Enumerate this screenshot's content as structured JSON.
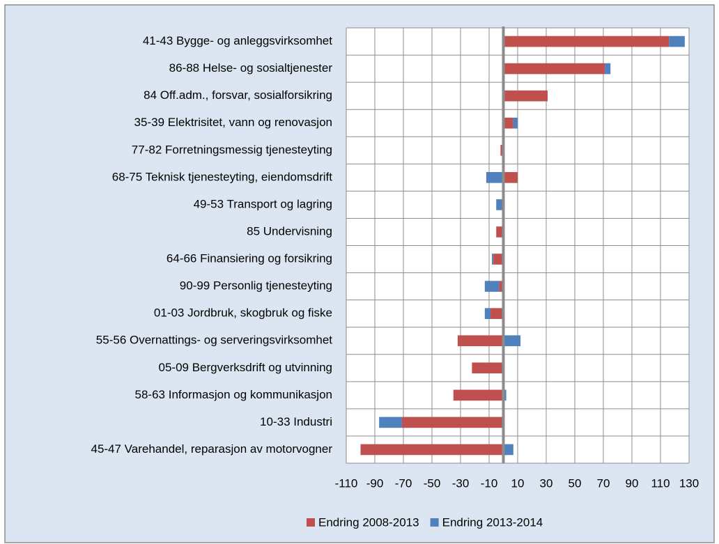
{
  "chart_data": {
    "type": "stacked-barh",
    "categories": [
      "41-43 Bygge- og anleggsvirksomhet",
      "86-88 Helse- og sosialtjenester",
      "84 Off.adm., forsvar, sosialforsikring",
      "35-39 Elektrisitet, vann og renovasjon",
      "77-82 Forretningsmessig tjenesteyting",
      "68-75 Teknisk tjenesteyting, eiendomsdrift",
      "49-53 Transport og lagring",
      "85 Undervisning",
      "64-66 Finansiering og forsikring",
      "90-99 Personlig tjenesteyting",
      "01-03 Jordbruk, skogbruk og fiske",
      "55-56 Overnattings- og serveringsvirksomhet",
      "05-09 Bergverksdrift og utvinning",
      "58-63 Informasjon og kommunikasjon",
      "10-33 Industri",
      "45-47 Varehandel, reparasjon av motorvogner"
    ],
    "series": [
      {
        "name": "Endring 2008-2013",
        "color": "#c0504d",
        "values": [
          116,
          71,
          31,
          7,
          -2,
          10,
          1,
          -5,
          -7,
          -3,
          -9,
          -32,
          -22,
          -35,
          -71,
          -100
        ]
      },
      {
        "name": "Endring 2013-2014",
        "color": "#4f81bd",
        "values": [
          11,
          4,
          0,
          3,
          0,
          -12,
          -5,
          0,
          -1,
          -10,
          -4,
          12,
          0,
          2,
          -16,
          7
        ]
      }
    ],
    "xlim": [
      -110,
      130
    ],
    "xticks": [
      -110,
      -90,
      -70,
      -50,
      -30,
      -10,
      10,
      30,
      50,
      70,
      90,
      110,
      130
    ],
    "grid": true,
    "legend": "bottom"
  }
}
